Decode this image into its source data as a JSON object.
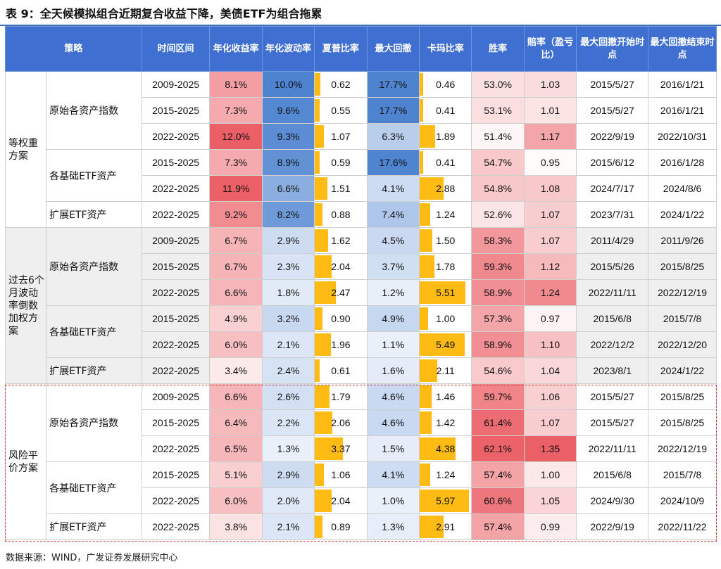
{
  "title": "表 9：全天候模拟组合近期复合收益下降，美债ETF为组合拖累",
  "headers": [
    "策略",
    "时间区间",
    "年化收益率",
    "年化波动率",
    "夏普比率",
    "最大回撤",
    "卡玛比率",
    "胜率",
    "赔率（盈亏比）",
    "最大回撤开始时点",
    "最大回撤结束时点"
  ],
  "groups": [
    {
      "name": "等权重方案",
      "subgroups": [
        {
          "name": "原始各资产指数",
          "rows": [
            [
              "2009-2025",
              "8.1%",
              "10.0%",
              "0.62",
              "17.7%",
              "0.46",
              "53.0%",
              "1.03",
              "2015/5/27",
              "2016/1/21"
            ],
            [
              "2015-2025",
              "7.3%",
              "9.6%",
              "0.55",
              "17.7%",
              "0.41",
              "53.1%",
              "1.01",
              "2015/5/27",
              "2016/1/21"
            ],
            [
              "2022-2025",
              "12.0%",
              "9.3%",
              "1.07",
              "6.3%",
              "1.89",
              "51.4%",
              "1.17",
              "2022/9/19",
              "2022/10/31"
            ]
          ]
        },
        {
          "name": "各基础ETF资产",
          "rows": [
            [
              "2015-2025",
              "7.3%",
              "8.9%",
              "0.59",
              "17.6%",
              "0.41",
              "54.7%",
              "0.95",
              "2015/6/12",
              "2016/1/28"
            ],
            [
              "2022-2025",
              "11.9%",
              "6.6%",
              "1.51",
              "4.1%",
              "2.88",
              "54.8%",
              "1.08",
              "2024/7/17",
              "2024/8/6"
            ]
          ]
        },
        {
          "name": "扩展ETF资产",
          "rows": [
            [
              "2022-2025",
              "9.2%",
              "8.2%",
              "0.88",
              "7.4%",
              "1.24",
              "52.6%",
              "1.07",
              "2023/7/31",
              "2024/1/22"
            ]
          ]
        }
      ]
    },
    {
      "name": "过去6个月波动率倒数加权方案",
      "subgroups": [
        {
          "name": "原始各资产指数",
          "rows": [
            [
              "2009-2025",
              "6.7%",
              "2.9%",
              "1.62",
              "4.5%",
              "1.50",
              "58.3%",
              "1.07",
              "2011/4/29",
              "2011/9/26"
            ],
            [
              "2015-2025",
              "6.7%",
              "2.3%",
              "2.04",
              "3.7%",
              "1.78",
              "59.3%",
              "1.12",
              "2015/5/26",
              "2015/8/25"
            ],
            [
              "2022-2025",
              "6.6%",
              "1.8%",
              "2.47",
              "1.2%",
              "5.51",
              "58.9%",
              "1.24",
              "2022/11/11",
              "2022/12/19"
            ]
          ]
        },
        {
          "name": "各基础ETF资产",
          "rows": [
            [
              "2015-2025",
              "4.9%",
              "3.2%",
              "0.90",
              "4.9%",
              "1.00",
              "57.3%",
              "0.97",
              "2015/6/8",
              "2015/7/8"
            ],
            [
              "2022-2025",
              "6.0%",
              "2.1%",
              "1.96",
              "1.1%",
              "5.49",
              "58.9%",
              "1.10",
              "2022/12/2",
              "2022/12/20"
            ]
          ]
        },
        {
          "name": "扩展ETF资产",
          "rows": [
            [
              "2022-2025",
              "3.4%",
              "2.4%",
              "0.61",
              "1.6%",
              "2.11",
              "54.6%",
              "1.04",
              "2023/8/1",
              "2024/1/22"
            ]
          ]
        }
      ]
    },
    {
      "name": "风险平价方案",
      "subgroups": [
        {
          "name": "原始各资产指数",
          "rows": [
            [
              "2009-2025",
              "6.6%",
              "2.6%",
              "1.79",
              "4.6%",
              "1.46",
              "59.7%",
              "1.06",
              "2015/5/27",
              "2015/8/25"
            ],
            [
              "2015-2025",
              "6.4%",
              "2.2%",
              "2.06",
              "4.6%",
              "1.42",
              "61.4%",
              "1.07",
              "2015/5/27",
              "2015/8/25"
            ],
            [
              "2022-2025",
              "6.5%",
              "1.3%",
              "3.37",
              "1.5%",
              "4.38",
              "62.1%",
              "1.35",
              "2022/11/11",
              "2022/12/19"
            ]
          ]
        },
        {
          "name": "各基础ETF资产",
          "rows": [
            [
              "2015-2025",
              "5.1%",
              "2.9%",
              "1.06",
              "4.1%",
              "1.24",
              "57.4%",
              "1.00",
              "2015/6/8",
              "2015/7/8"
            ],
            [
              "2022-2025",
              "6.0%",
              "2.0%",
              "2.04",
              "1.0%",
              "5.97",
              "60.6%",
              "1.05",
              "2024/9/30",
              "2024/10/9"
            ]
          ]
        },
        {
          "name": "扩展ETF资产",
          "rows": [
            [
              "2022-2025",
              "3.8%",
              "2.1%",
              "0.89",
              "1.3%",
              "2.91",
              "57.4%",
              "0.99",
              "2022/9/19",
              "2022/11/22"
            ]
          ]
        }
      ]
    }
  ],
  "source": "数据来源：WIND，广发证券发展研究中心",
  "colors": {
    "header_bg": "#3f6fd0",
    "red_scale": "#e8474f",
    "blue_scale": "#2f6dc8",
    "bar_yellow": "#fdbb14",
    "risk_border": "#d43b3b"
  }
}
